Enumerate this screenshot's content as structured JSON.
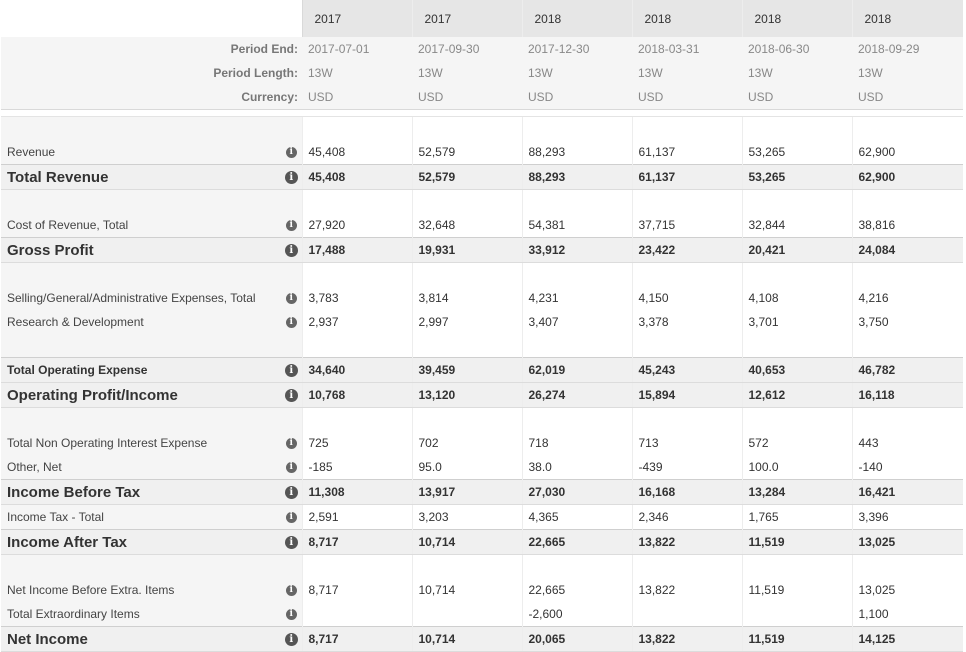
{
  "header": {
    "years": [
      "2017",
      "2017",
      "2018",
      "2018",
      "2018",
      "2018"
    ],
    "meta": [
      {
        "label": "Period End:",
        "values": [
          "2017-07-01",
          "2017-09-30",
          "2017-12-30",
          "2018-03-31",
          "2018-06-30",
          "2018-09-29"
        ]
      },
      {
        "label": "Period Length:",
        "values": [
          "13W",
          "13W",
          "13W",
          "13W",
          "13W",
          "13W"
        ]
      },
      {
        "label": "Currency:",
        "values": [
          "USD",
          "USD",
          "USD",
          "USD",
          "USD",
          "USD"
        ]
      }
    ]
  },
  "icons": {
    "info": "info-icon"
  },
  "colors": {
    "negative": "#cc0000",
    "header_bg": "#e6e6e6",
    "label_bg": "#f5f5f5"
  },
  "rows": [
    {
      "type": "gap"
    },
    {
      "type": "item",
      "label": "Revenue",
      "values": [
        "45,408",
        "52,579",
        "88,293",
        "61,137",
        "53,265",
        "62,900"
      ]
    },
    {
      "type": "sub",
      "label": "Total Revenue",
      "values": [
        "45,408",
        "52,579",
        "88,293",
        "61,137",
        "53,265",
        "62,900"
      ]
    },
    {
      "type": "gap"
    },
    {
      "type": "item",
      "label": "Cost of Revenue, Total",
      "values": [
        "27,920",
        "32,648",
        "54,381",
        "37,715",
        "32,844",
        "38,816"
      ]
    },
    {
      "type": "sub",
      "label": "Gross Profit",
      "values": [
        "17,488",
        "19,931",
        "33,912",
        "23,422",
        "20,421",
        "24,084"
      ]
    },
    {
      "type": "gap"
    },
    {
      "type": "item",
      "label": "Selling/General/Administrative Expenses, Total",
      "values": [
        "3,783",
        "3,814",
        "4,231",
        "4,150",
        "4,108",
        "4,216"
      ]
    },
    {
      "type": "item",
      "label": "Research & Development",
      "values": [
        "2,937",
        "2,997",
        "3,407",
        "3,378",
        "3,701",
        "3,750"
      ]
    },
    {
      "type": "gap"
    },
    {
      "type": "sub",
      "small": true,
      "label": "Total Operating Expense",
      "values": [
        "34,640",
        "39,459",
        "62,019",
        "45,243",
        "40,653",
        "46,782"
      ]
    },
    {
      "type": "sub",
      "label": "Operating Profit/Income",
      "values": [
        "10,768",
        "13,120",
        "26,274",
        "15,894",
        "12,612",
        "16,118"
      ]
    },
    {
      "type": "gap"
    },
    {
      "type": "item",
      "label": "Total Non Operating Interest Expense",
      "values": [
        "725",
        "702",
        "718",
        "713",
        "572",
        "443"
      ]
    },
    {
      "type": "item",
      "label": "Other, Net",
      "values": [
        "-185",
        "95.0",
        "38.0",
        "-439",
        "100.0",
        "-140"
      ]
    },
    {
      "type": "sub",
      "label": "Income Before Tax",
      "values": [
        "11,308",
        "13,917",
        "27,030",
        "16,168",
        "13,284",
        "16,421"
      ]
    },
    {
      "type": "item",
      "label": "Income Tax - Total",
      "values": [
        "2,591",
        "3,203",
        "4,365",
        "2,346",
        "1,765",
        "3,396"
      ]
    },
    {
      "type": "sub",
      "label": "Income After Tax",
      "values": [
        "8,717",
        "10,714",
        "22,665",
        "13,822",
        "11,519",
        "13,025"
      ]
    },
    {
      "type": "gap"
    },
    {
      "type": "item",
      "label": "Net Income Before Extra. Items",
      "values": [
        "8,717",
        "10,714",
        "22,665",
        "13,822",
        "11,519",
        "13,025"
      ]
    },
    {
      "type": "item",
      "label": "Total Extraordinary Items",
      "values": [
        "",
        "",
        "-2,600",
        "",
        "",
        "1,100"
      ]
    },
    {
      "type": "sub",
      "label": "Net Income",
      "values": [
        "8,717",
        "10,714",
        "20,065",
        "13,822",
        "11,519",
        "14,125"
      ]
    }
  ]
}
